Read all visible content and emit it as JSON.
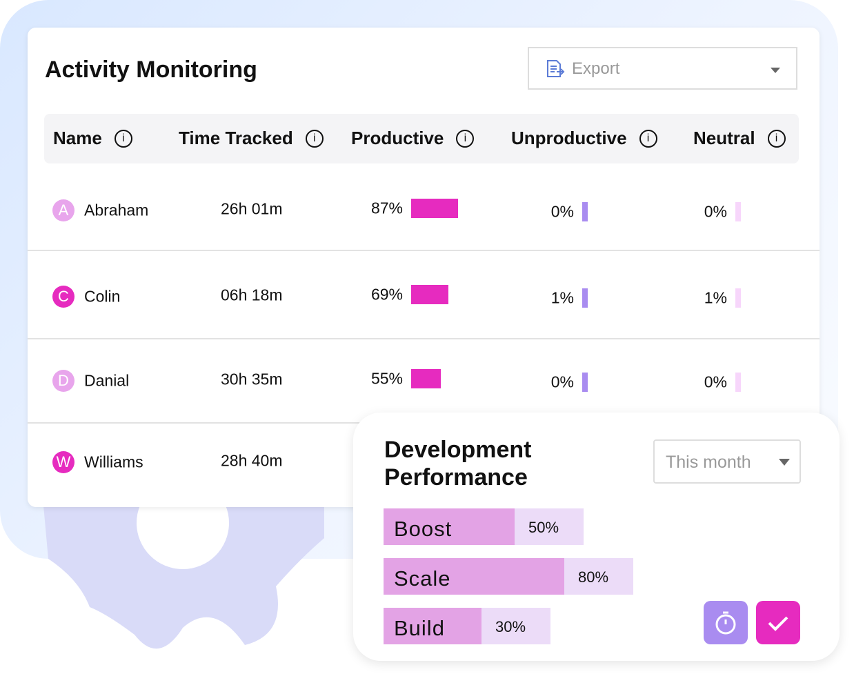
{
  "header": {
    "title": "Activity Monitoring",
    "export": "Export"
  },
  "table": {
    "columns": [
      "Name",
      "Time Tracked",
      "Productive",
      "Unproductive",
      "Neutral"
    ],
    "rows": [
      {
        "initial": "A",
        "name": "Abraham",
        "time": "26h 01m",
        "productive": {
          "value": 87,
          "label": "87%"
        },
        "unproductive": {
          "value": 0,
          "label": "0%"
        },
        "neutral": {
          "value": 0,
          "label": "0%"
        }
      },
      {
        "initial": "C",
        "name": "Colin",
        "time": "06h 18m",
        "productive": {
          "value": 69,
          "label": "69%"
        },
        "unproductive": {
          "value": 1,
          "label": "1%"
        },
        "neutral": {
          "value": 1,
          "label": "1%"
        }
      },
      {
        "initial": "D",
        "name": "Danial",
        "time": "30h 35m",
        "productive": {
          "value": 55,
          "label": "55%"
        },
        "unproductive": {
          "value": 0,
          "label": "0%"
        },
        "neutral": {
          "value": 0,
          "label": "0%"
        }
      },
      {
        "initial": "W",
        "name": "Williams",
        "time": "28h 40m"
      }
    ]
  },
  "performance": {
    "title": "Development Performance",
    "period": "This month",
    "items": [
      {
        "name": "Boost",
        "value": 50,
        "label": "50%"
      },
      {
        "name": "Scale",
        "value": 80,
        "label": "80%"
      },
      {
        "name": "Build",
        "value": 30,
        "label": "30%"
      }
    ]
  }
}
